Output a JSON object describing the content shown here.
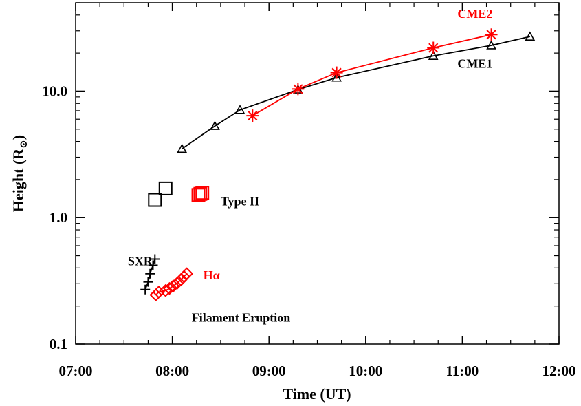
{
  "chart_data": {
    "type": "scatter",
    "title": "",
    "xlabel": "Time (UT)",
    "ylabel": "Height (R",
    "ylabel_sub": "⊙",
    "ylabel_close": ")",
    "x_unit": "hours UT",
    "xlim": [
      7.0,
      12.0
    ],
    "ylim": [
      0.1,
      50
    ],
    "yscale": "log",
    "x_ticks": [
      {
        "value": 7.0,
        "label": "07:00"
      },
      {
        "value": 8.0,
        "label": "08:00"
      },
      {
        "value": 9.0,
        "label": "09:00"
      },
      {
        "value": 10.0,
        "label": "10:00"
      },
      {
        "value": 11.0,
        "label": "11:00"
      },
      {
        "value": 12.0,
        "label": "12:00"
      }
    ],
    "y_ticks": [
      {
        "value": 0.1,
        "label": "0.1"
      },
      {
        "value": 1.0,
        "label": "1.0"
      },
      {
        "value": 10.0,
        "label": "10.0"
      }
    ],
    "grid": false,
    "legend": "none",
    "series": [
      {
        "name": "CME1",
        "color": "#000000",
        "marker": "triangle",
        "line": true,
        "x": [
          8.1,
          8.44,
          8.7,
          9.3,
          9.7,
          10.7,
          11.3,
          11.7
        ],
        "y": [
          3.5,
          5.3,
          7.1,
          10.3,
          12.8,
          19.0,
          23.0,
          27.0
        ]
      },
      {
        "name": "CME2",
        "color": "#ff0000",
        "marker": "asterisk",
        "line": true,
        "x": [
          8.83,
          9.3,
          9.7,
          10.7,
          11.3
        ],
        "y": [
          6.4,
          10.4,
          14.0,
          22.0,
          28.0
        ]
      },
      {
        "name": "Type II",
        "color": "#000000",
        "marker": "square",
        "line": false,
        "x": [
          7.82,
          7.93
        ],
        "y": [
          1.38,
          1.7
        ]
      },
      {
        "name": "Type II",
        "color": "#ff0000",
        "marker": "square",
        "line": false,
        "x": [
          8.27,
          8.29,
          8.31
        ],
        "y": [
          1.51,
          1.54,
          1.57
        ]
      },
      {
        "name": "SXR",
        "color": "#000000",
        "marker": "plus",
        "line": true,
        "x": [
          7.72,
          7.75,
          7.77,
          7.8,
          7.82
        ],
        "y": [
          0.27,
          0.31,
          0.36,
          0.42,
          0.47
        ]
      },
      {
        "name": "Hα",
        "color": "#ff0000",
        "marker": "diamond",
        "line": true,
        "x": [
          7.83,
          7.86,
          7.93,
          7.97,
          8.01,
          8.05,
          8.09,
          8.12,
          8.15
        ],
        "y": [
          0.245,
          0.258,
          0.265,
          0.275,
          0.288,
          0.303,
          0.322,
          0.342,
          0.36
        ]
      }
    ],
    "annotations": [
      {
        "text": "CME2",
        "color": "#ff0000",
        "x": 10.95,
        "y": 38.0
      },
      {
        "text": "CME1",
        "color": "#000000",
        "x": 10.95,
        "y": 15.3
      },
      {
        "text": "Type II",
        "color": "#000000",
        "x": 8.5,
        "y": 1.25
      },
      {
        "text": "SXR",
        "color": "#000000",
        "x": 7.54,
        "y": 0.42
      },
      {
        "text": "Hα",
        "color": "#ff0000",
        "x": 8.32,
        "y": 0.325
      },
      {
        "text": "Filament Eruption",
        "color": "#000000",
        "x": 8.2,
        "y": 0.15
      }
    ]
  }
}
